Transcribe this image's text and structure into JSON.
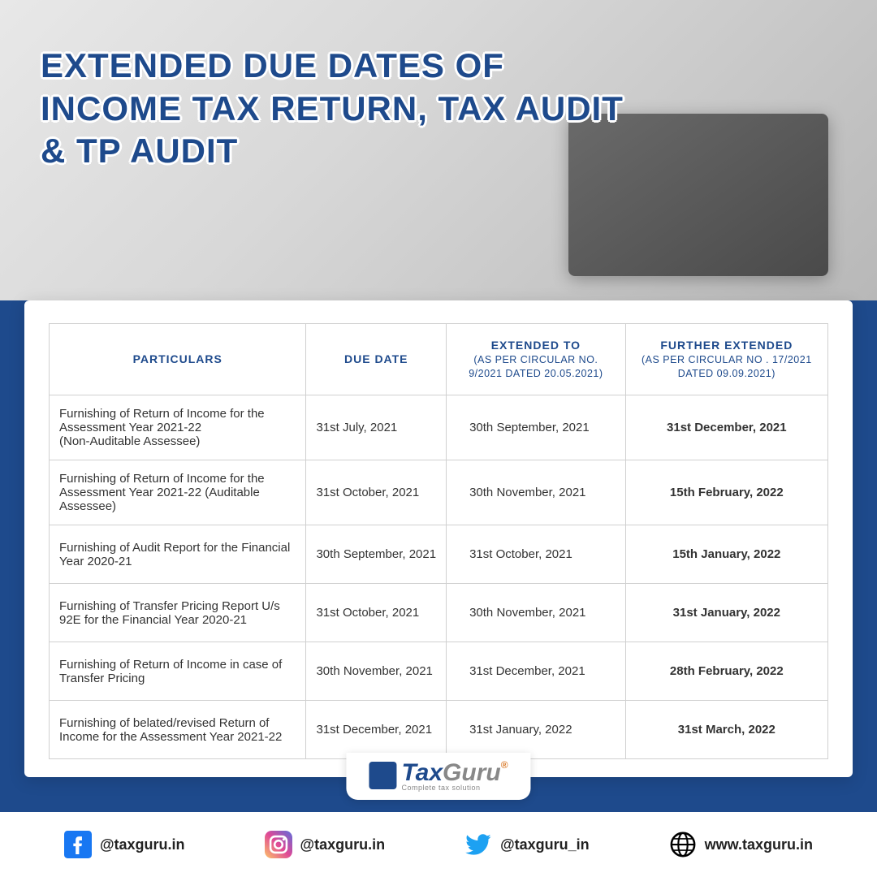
{
  "title": "EXTENDED DUE DATES OF INCOME TAX RETURN, TAX AUDIT & TP AUDIT",
  "colors": {
    "brand": "#1e4a8c",
    "border": "#d0d0d0",
    "text": "#333333",
    "white": "#ffffff",
    "facebook": "#1877f2",
    "twitter": "#1da1f2",
    "globe": "#000000"
  },
  "table": {
    "type": "table",
    "columns": [
      {
        "label": "PARTICULARS",
        "sub": ""
      },
      {
        "label": "DUE DATE",
        "sub": ""
      },
      {
        "label": "EXTENDED TO",
        "sub": "(AS PER CIRCULAR NO. 9/2021 DATED 20.05.2021)"
      },
      {
        "label": "FURTHER EXTENDED",
        "sub": "(AS PER CIRCULAR NO . 17/2021 DATED 09.09.2021)"
      }
    ],
    "rows": [
      {
        "particulars": "Furnishing of Return of Income for the Assessment Year 2021-22\n(Non-Auditable Assessee)",
        "due": "31st July, 2021",
        "ext": "30th September, 2021",
        "fext": "31st December, 2021"
      },
      {
        "particulars": "Furnishing of Return of Income for the Assessment Year 2021-22 (Auditable Assessee)",
        "due": "31st October, 2021",
        "ext": "30th November, 2021",
        "fext": "15th February, 2022"
      },
      {
        "particulars": "Furnishing of Audit Report for the Financial Year 2020-21",
        "due": "30th September, 2021",
        "ext": "31st October, 2021",
        "fext": "15th January, 2022"
      },
      {
        "particulars": "Furnishing of Transfer Pricing Report U/s 92E for the Financial Year 2020-21",
        "due": "31st October, 2021",
        "ext": "30th November, 2021",
        "fext": "31st January, 2022"
      },
      {
        "particulars": "Furnishing of Return of Income in case of Transfer Pricing",
        "due": "30th November, 2021",
        "ext": "31st December, 2021",
        "fext": "28th February, 2022"
      },
      {
        "particulars": "Furnishing of belated/revised Return of Income for the Assessment Year 2021-22",
        "due": "31st December, 2021",
        "ext": "31st January, 2022",
        "fext": "31st March, 2022"
      }
    ]
  },
  "logo": {
    "brand_prefix": "Tax",
    "brand_suffix": "Guru",
    "reg": "®",
    "tagline": "Complete tax solution"
  },
  "social": {
    "facebook": "@taxguru.in",
    "instagram": "@taxguru.in",
    "twitter": "@taxguru_in",
    "web": "www.taxguru.in"
  }
}
